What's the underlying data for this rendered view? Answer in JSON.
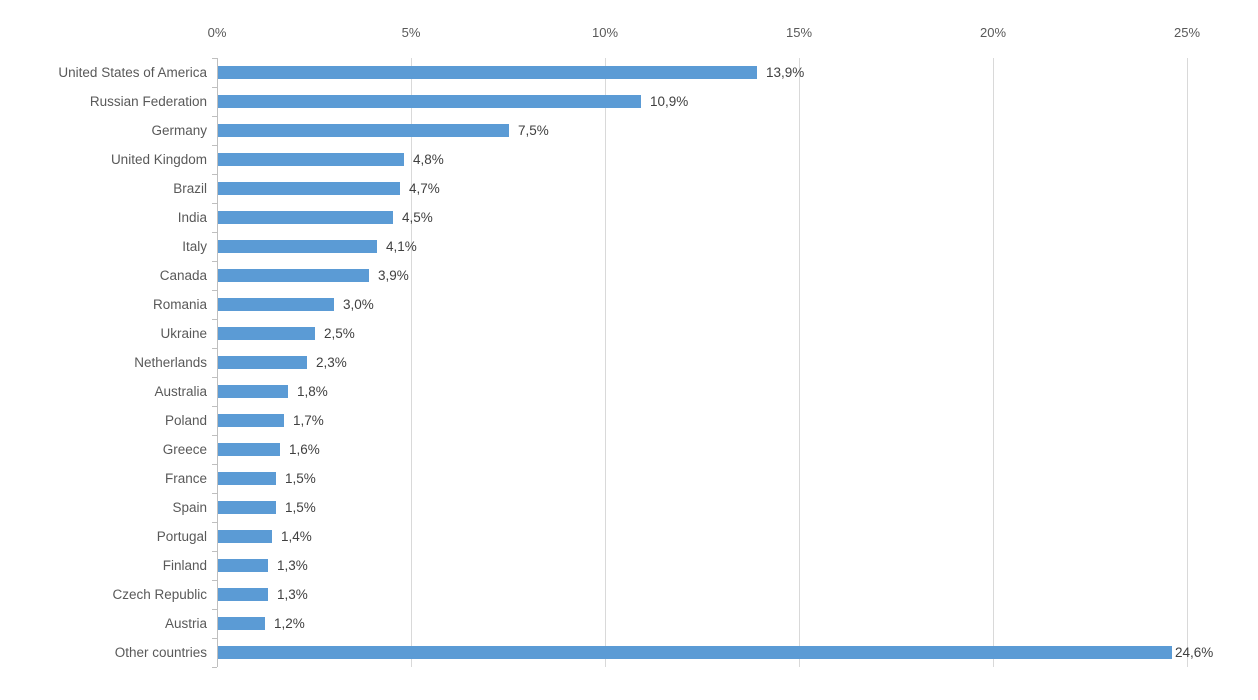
{
  "chart_data": {
    "type": "bar",
    "orientation": "horizontal",
    "title": "",
    "xlabel": "",
    "ylabel": "",
    "legend": "none",
    "grid": true,
    "categories": [
      "United States of America",
      "Russian Federation",
      "Germany",
      "United Kingdom",
      "Brazil",
      "India",
      "Italy",
      "Canada",
      "Romania",
      "Ukraine",
      "Netherlands",
      "Australia",
      "Poland",
      "Greece",
      "France",
      "Spain",
      "Portugal",
      "Finland",
      "Czech Republic",
      "Austria",
      "Other countries"
    ],
    "values": [
      13.9,
      10.9,
      7.5,
      4.8,
      4.7,
      4.5,
      4.1,
      3.9,
      3.0,
      2.5,
      2.3,
      1.8,
      1.7,
      1.6,
      1.5,
      1.5,
      1.4,
      1.3,
      1.3,
      1.2,
      24.6
    ],
    "data_labels": [
      "13,9%",
      "10,9%",
      "7,5%",
      "4,8%",
      "4,7%",
      "4,5%",
      "4,1%",
      "3,9%",
      "3,0%",
      "2,5%",
      "2,3%",
      "1,8%",
      "1,7%",
      "1,6%",
      "1,5%",
      "1,5%",
      "1,4%",
      "1,3%",
      "1,3%",
      "1,2%",
      "24,6%"
    ],
    "x_axis": {
      "min": 0,
      "max": 25,
      "tick_values": [
        0,
        5,
        10,
        15,
        20,
        25
      ],
      "ticks": [
        "0%",
        "5%",
        "10%",
        "15%",
        "20%",
        "25%"
      ]
    },
    "colors": {
      "bar": "#5B9BD5",
      "gridline": "#D9D9D9",
      "axis_line": "#BFBFBF",
      "category_label": "#595959",
      "tick_label": "#595959",
      "data_label": "#404040",
      "background": "#FFFFFF"
    }
  }
}
